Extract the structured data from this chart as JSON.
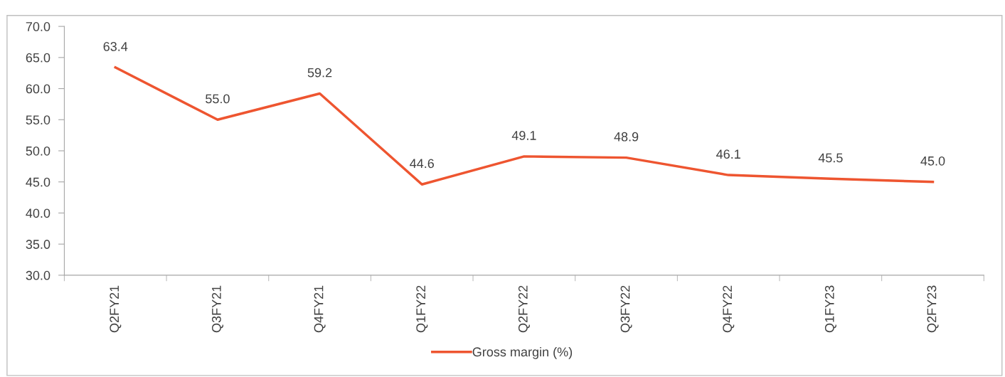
{
  "chart_data": {
    "type": "line",
    "categories": [
      "Q2FY21",
      "Q3FY21",
      "Q4FY21",
      "Q1FY22",
      "Q2FY22",
      "Q3FY22",
      "Q4FY22",
      "Q1FY23",
      "Q2FY23"
    ],
    "series": [
      {
        "name": "Gross margin (%)",
        "color": "#ee5530",
        "values": [
          63.4,
          55.0,
          59.2,
          44.6,
          49.1,
          48.9,
          46.1,
          45.5,
          45.0
        ],
        "value_labels": [
          "63.4",
          "55.0",
          "59.2",
          "44.6",
          "49.1",
          "48.9",
          "46.1",
          "45.5",
          "45.0"
        ]
      }
    ],
    "ylim": [
      30,
      70
    ],
    "yticks": [
      {
        "value": 30,
        "label": "30.0"
      },
      {
        "value": 35,
        "label": "35.0"
      },
      {
        "value": 40,
        "label": "40.0"
      },
      {
        "value": 45,
        "label": "45.0"
      },
      {
        "value": 50,
        "label": "50.0"
      },
      {
        "value": 55,
        "label": "55.0"
      },
      {
        "value": 60,
        "label": "60.0"
      },
      {
        "value": 65,
        "label": "65.0"
      },
      {
        "value": 70,
        "label": "70.0"
      }
    ],
    "grid": false,
    "legend": "bottom",
    "marker": "none",
    "line_style": "solid"
  }
}
